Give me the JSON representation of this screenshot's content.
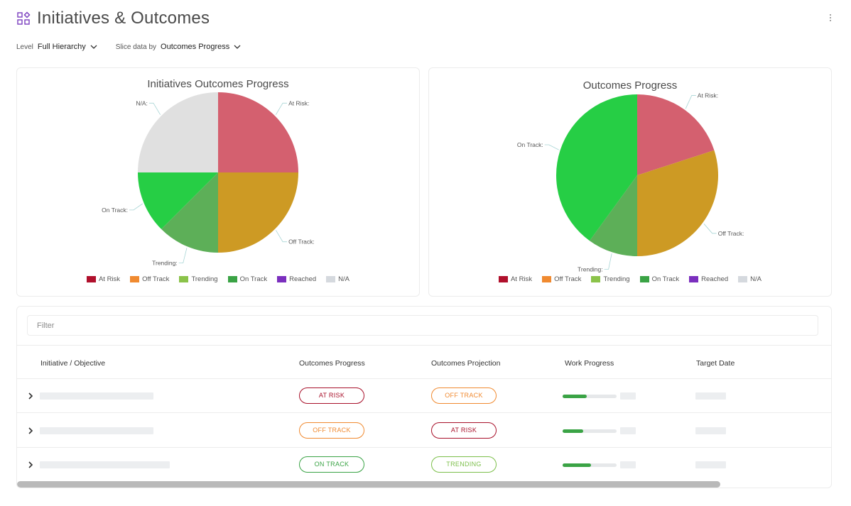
{
  "header": {
    "title": "Initiatives & Outcomes",
    "app_icon": "grid-shapes-icon",
    "menu_icon": "kebab-menu-icon"
  },
  "filters": {
    "level_label": "Level",
    "level_value": "Full Hierarchy",
    "slice_label": "Slice data by",
    "slice_value": "Outcomes Progress"
  },
  "colors": {
    "at_risk": "#d4606f",
    "off_track": "#cd9a24",
    "trending": "#5daf58",
    "on_track": "#26ce45",
    "na": "#e0e0e0",
    "legend_at_risk": "#b0102c",
    "legend_off_track": "#f08a30",
    "legend_trending": "#8bc34a",
    "legend_on_track": "#3aa345",
    "legend_reached": "#7b2fbe",
    "legend_na": "#d5d9de"
  },
  "legend": [
    {
      "label": "At Risk",
      "color": "#b0102c"
    },
    {
      "label": "Off Track",
      "color": "#f08a30"
    },
    {
      "label": "Trending",
      "color": "#8bc34a"
    },
    {
      "label": "On Track",
      "color": "#3aa345"
    },
    {
      "label": "Reached",
      "color": "#7b2fbe"
    },
    {
      "label": "N/A",
      "color": "#d5d9de"
    }
  ],
  "chart_data": [
    {
      "type": "pie",
      "title": "Initiatives Outcomes Progress",
      "slices": [
        {
          "label": "At Risk:",
          "value": 25,
          "color": "#d4606f"
        },
        {
          "label": "Off Track:",
          "value": 25,
          "color": "#cd9a24"
        },
        {
          "label": "Trending:",
          "value": 12.5,
          "color": "#5daf58"
        },
        {
          "label": "On Track:",
          "value": 12.5,
          "color": "#26ce45"
        },
        {
          "label": "N/A:",
          "value": 25,
          "color": "#e0e0e0"
        }
      ]
    },
    {
      "type": "pie",
      "title": "Outcomes Progress",
      "slices": [
        {
          "label": "At Risk:",
          "value": 20,
          "color": "#d4606f"
        },
        {
          "label": "Off Track:",
          "value": 30,
          "color": "#cd9a24"
        },
        {
          "label": "Trending:",
          "value": 10,
          "color": "#5daf58"
        },
        {
          "label": "On Track:",
          "value": 40,
          "color": "#26ce45"
        }
      ]
    }
  ],
  "table": {
    "filter_placeholder": "Filter",
    "columns": [
      "Initiative / Objective",
      "Outcomes Progress",
      "Outcomes Projection",
      "Work Progress",
      "Target Date"
    ],
    "rows": [
      {
        "progress": "AT RISK",
        "progress_color": "#a8102a",
        "projection": "OFF TRACK",
        "projection_color": "#f08a30",
        "work_progress": 0.45
      },
      {
        "progress": "OFF TRACK",
        "progress_color": "#f08a30",
        "projection": "AT RISK",
        "projection_color": "#a8102a",
        "work_progress": 0.38
      },
      {
        "progress": "ON TRACK",
        "progress_color": "#3aa345",
        "projection": "TRENDING",
        "projection_color": "#7cbf4a",
        "work_progress": 0.53
      }
    ]
  }
}
